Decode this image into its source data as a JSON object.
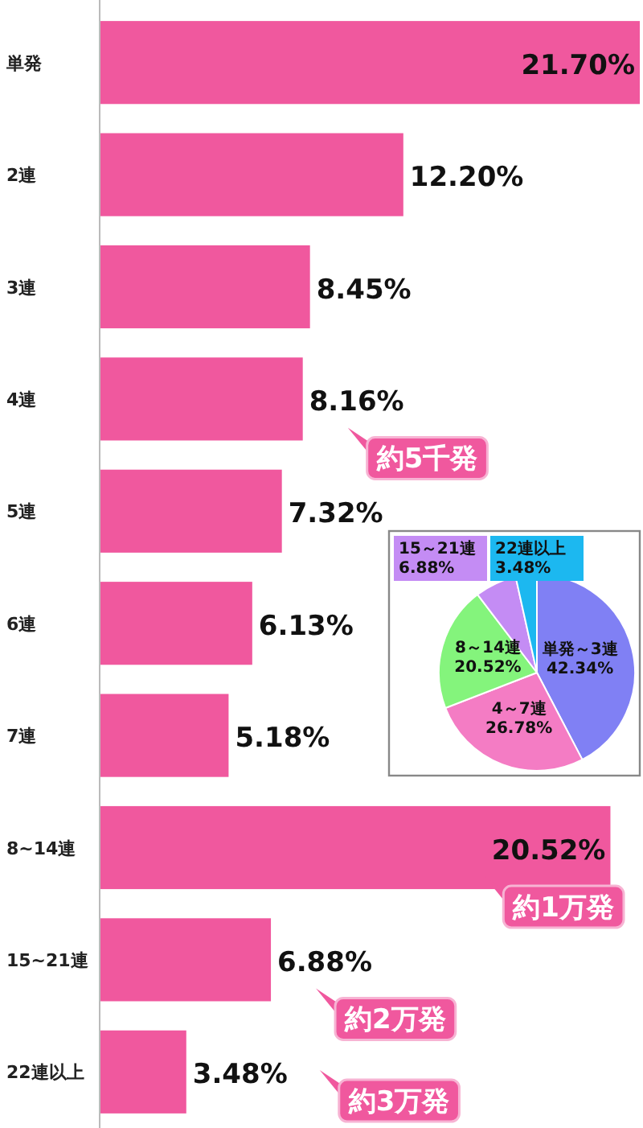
{
  "chart_data": [
    {
      "type": "bar",
      "orientation": "horizontal",
      "categories": [
        "単発",
        "2連",
        "3連",
        "4連",
        "5連",
        "6連",
        "7連",
        "8~14連",
        "15~21連",
        "22連以上"
      ],
      "values": [
        21.7,
        12.2,
        8.45,
        8.16,
        7.32,
        6.13,
        5.18,
        20.52,
        6.88,
        3.48
      ],
      "value_labels": [
        "21.70%",
        "12.20%",
        "8.45%",
        "8.16%",
        "7.32%",
        "6.13%",
        "5.18%",
        "20.52%",
        "6.88%",
        "3.48%"
      ],
      "color": "#f0589e",
      "xlim": [
        0,
        21.7
      ],
      "tick_labels": "y",
      "annotations": [
        "約5千発",
        "約1万発",
        "約2万発",
        "約3万発"
      ]
    },
    {
      "type": "pie",
      "categories": [
        "単発～3連",
        "4～7連",
        "8～14連",
        "15～21連",
        "22連以上"
      ],
      "values": [
        42.34,
        26.78,
        20.52,
        6.88,
        3.48
      ],
      "value_labels": [
        "42.34%",
        "26.78%",
        "20.52%",
        "6.88%",
        "3.48%"
      ],
      "colors": [
        "#8080f4",
        "#f47cc4",
        "#84f47c",
        "#c48cf4",
        "#1cb8f0"
      ]
    }
  ]
}
